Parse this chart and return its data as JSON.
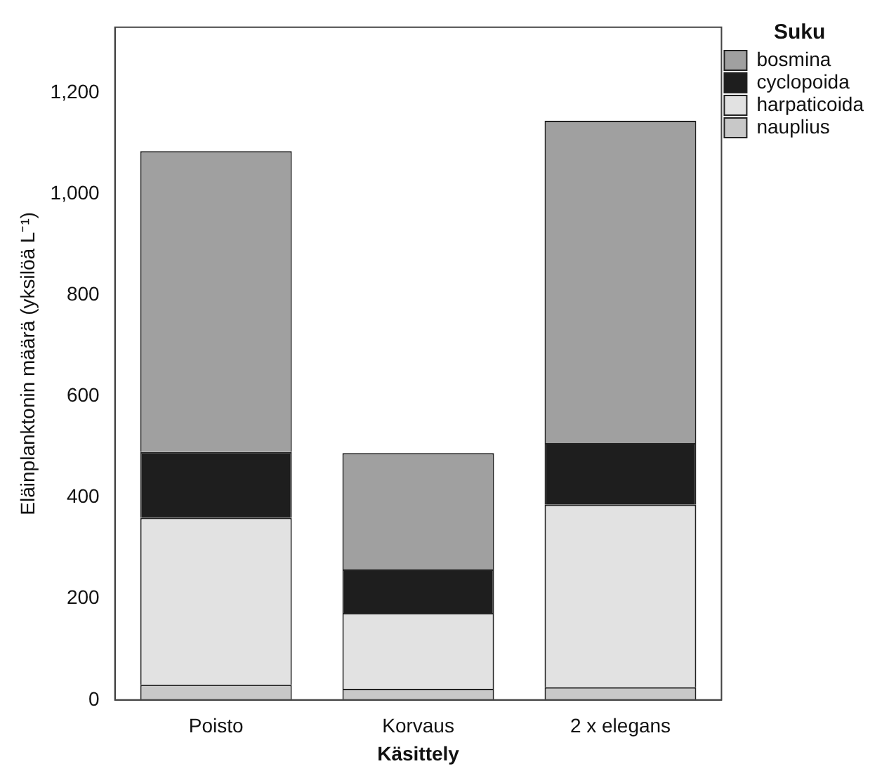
{
  "chart_data": {
    "type": "bar",
    "stacked": true,
    "xlabel": "Käsittely",
    "ylabel": "Eläinplanktonin määrä (yksilöä L⁻¹)",
    "legend_title": "Suku",
    "legend": "top right",
    "categories": [
      "Poisto",
      "Korvaus",
      "2 x elegans"
    ],
    "series": [
      {
        "name": "nauplius",
        "color": "#c8c8c8",
        "values": [
          30,
          22,
          25
        ]
      },
      {
        "name": "harpaticoida",
        "color": "#e2e2e2",
        "values": [
          330,
          150,
          361
        ]
      },
      {
        "name": "cyclopoida",
        "color": "#1e1e1e",
        "values": [
          130,
          86,
          122
        ]
      },
      {
        "name": "bosmina",
        "color": "#a0a0a0",
        "values": [
          595,
          230,
          637
        ]
      }
    ],
    "ylim": [
      0,
      1330
    ],
    "yticks": [
      0,
      200,
      400,
      600,
      800,
      {
        "value": 1000,
        "label": "1,000"
      },
      {
        "value": 1200,
        "label": "1,200"
      }
    ],
    "grid": false
  }
}
